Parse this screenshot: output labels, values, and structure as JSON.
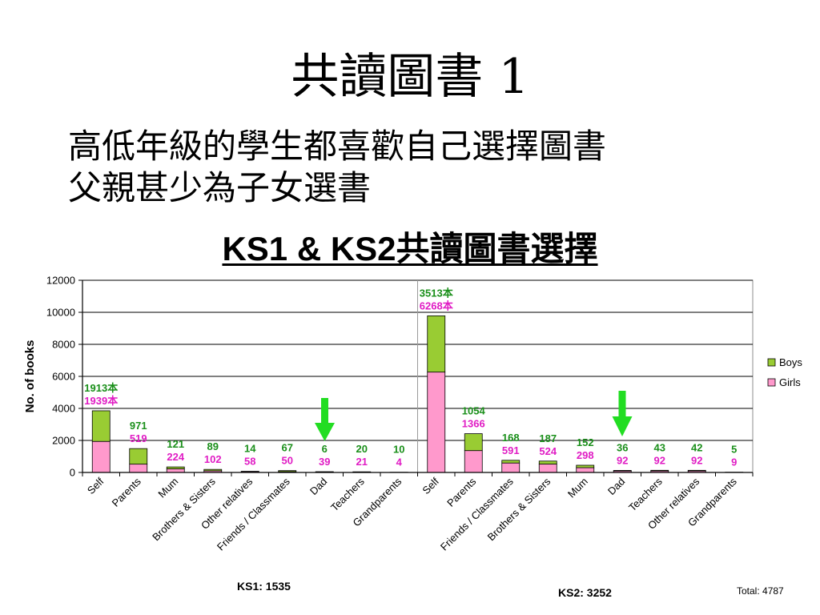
{
  "slide": {
    "title": "共讀圖書 1",
    "lines": [
      "高低年級的學生都喜歡自己選擇圖書",
      "父親甚少為子女選書"
    ]
  },
  "chart_data": {
    "type": "bar",
    "stacked": true,
    "title": "KS1 & KS2共讀圖書選擇",
    "xlabel": "",
    "ylabel": "No. of books",
    "ylim": [
      0,
      12000
    ],
    "yticks": [
      0,
      2000,
      4000,
      6000,
      8000,
      10000,
      12000
    ],
    "grid": true,
    "legend": "right",
    "series": [
      {
        "name": "Boys",
        "color": "#99cc33",
        "label_color": "#1a8f1a"
      },
      {
        "name": "Girls",
        "color": "#ff99cc",
        "label_color": "#e01cc4"
      }
    ],
    "groups": [
      {
        "label": "KS1: 1535",
        "categories": [
          "Self",
          "Parents",
          "Mum",
          "Brothers & Sisters",
          "Other relatives",
          "Friends / Classmates",
          "Dad",
          "Teachers",
          "Grandparents"
        ],
        "values": {
          "Boys": [
            1913,
            971,
            121,
            89,
            14,
            67,
            6,
            20,
            10
          ],
          "Girls": [
            1939,
            519,
            224,
            102,
            58,
            50,
            39,
            21,
            4
          ]
        },
        "data_labels": {
          "Boys": [
            "1913本",
            "971",
            "121",
            "89",
            "14",
            "67",
            "6",
            "20",
            "10"
          ],
          "Girls": [
            "1939本",
            "519",
            "224",
            "102",
            "58",
            "50",
            "39",
            "21",
            "4"
          ]
        }
      },
      {
        "label": "KS2: 3252",
        "categories": [
          "Self",
          "Parents",
          "Friends / Classmates",
          "Brothers & Sisters",
          "Mum",
          "Dad",
          "Teachers",
          "Other relatives",
          "Grandparents"
        ],
        "values": {
          "Boys": [
            3513,
            1054,
            168,
            187,
            152,
            36,
            43,
            42,
            5
          ],
          "Girls": [
            6268,
            1366,
            591,
            524,
            298,
            92,
            92,
            92,
            9
          ]
        },
        "data_labels": {
          "Boys": [
            "3513本",
            "1054",
            "168",
            "187",
            "152",
            "36",
            "43",
            "42",
            "5"
          ],
          "Girls": [
            "6268本",
            "1366",
            "591",
            "524",
            "298",
            "92",
            "92",
            "92",
            "9"
          ]
        }
      }
    ],
    "total_label": "Total: 4787",
    "annotation_arrow_color": "#22dd22"
  }
}
